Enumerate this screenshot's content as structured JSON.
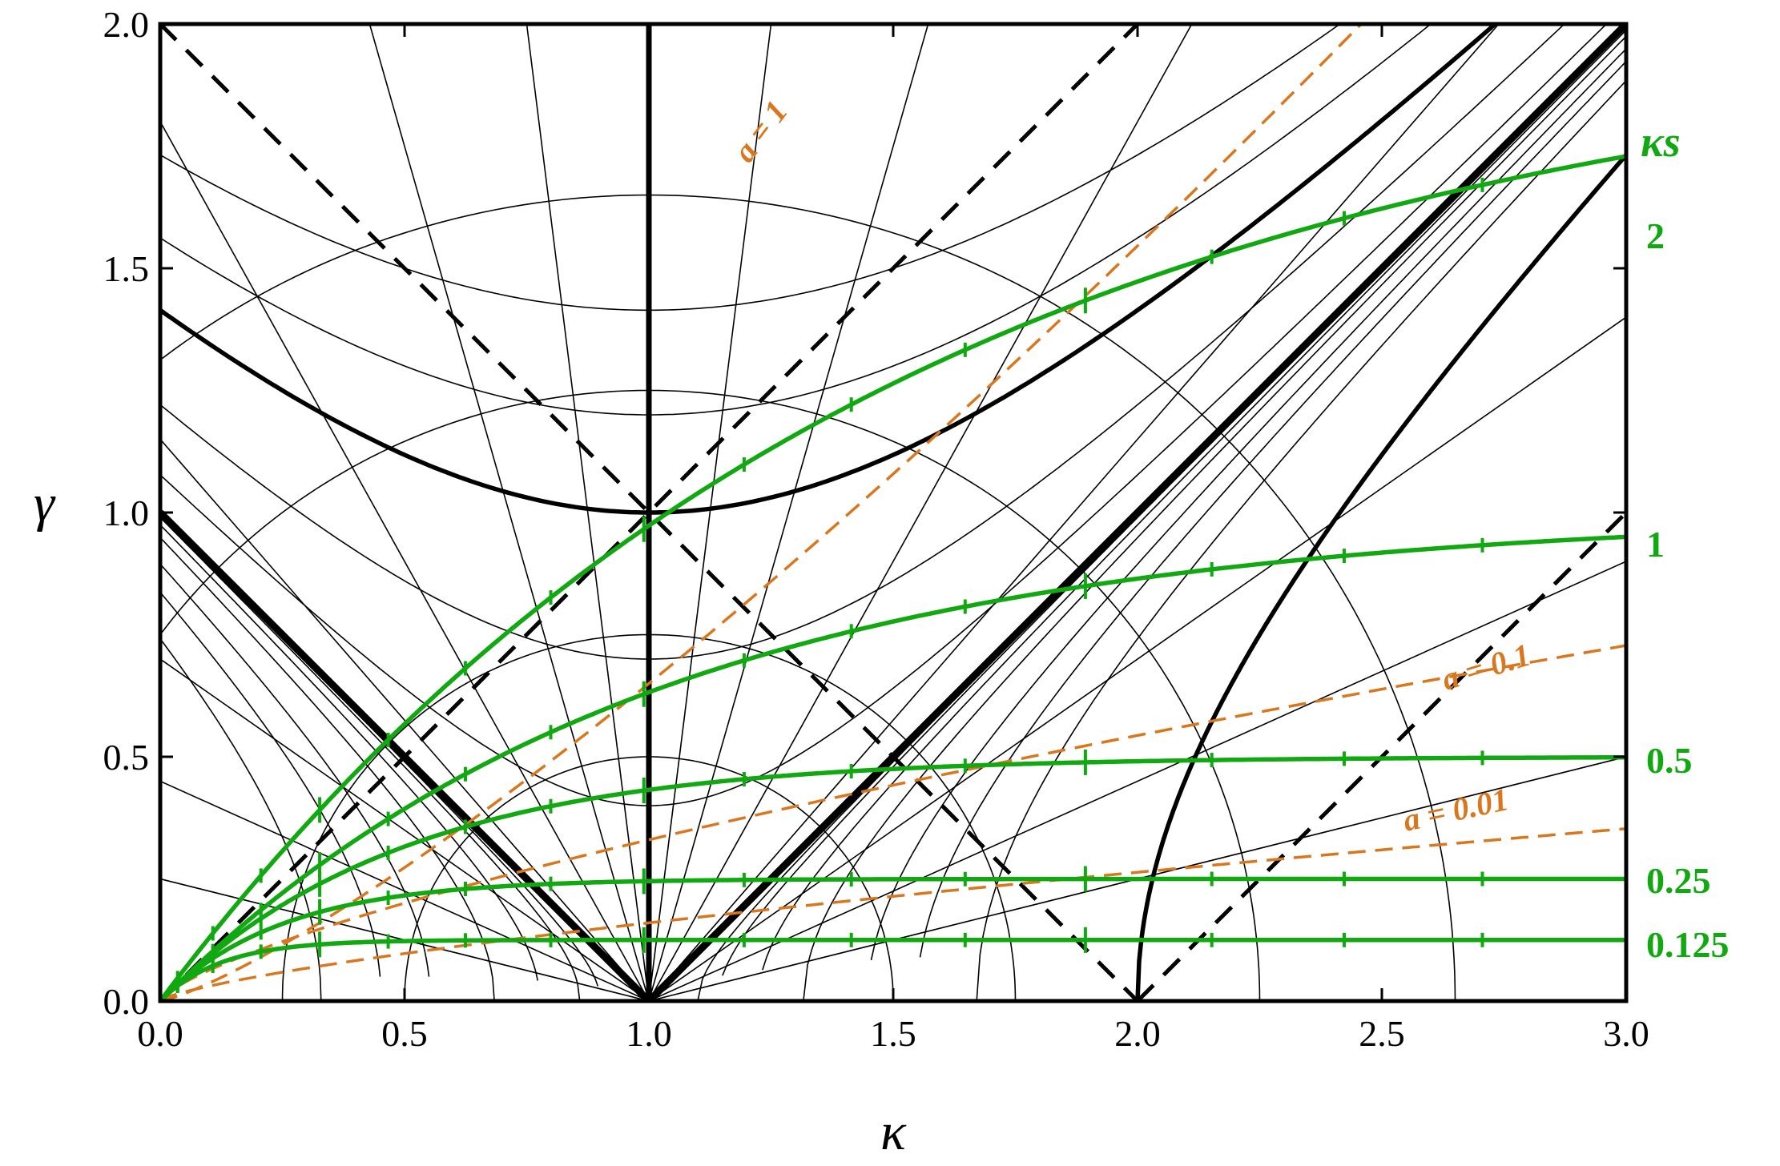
{
  "chart_data": {
    "type": "line",
    "title": "",
    "xlabel": "κ",
    "ylabel": "γ",
    "xlim": [
      0,
      3
    ],
    "ylim": [
      0,
      2
    ],
    "x_ticks": [
      "0.0",
      "0.5",
      "1.0",
      "1.5",
      "2.0",
      "2.5",
      "3.0"
    ],
    "y_ticks": [
      "0.0",
      "0.5",
      "1.0",
      "1.5",
      "2.0"
    ],
    "grid": false,
    "colors": {
      "black": "#000000",
      "green": "#11a811",
      "orange": "#d9771f"
    },
    "kappa_s": {
      "title": "κs",
      "values": [
        2,
        1,
        0.5,
        0.25,
        0.125
      ],
      "labels": [
        "2",
        "1",
        "0.5",
        "0.25",
        "0.125"
      ]
    },
    "a_curves": {
      "values": [
        1,
        0.1,
        0.01
      ],
      "labels": [
        "a = 1",
        "a = 0.1",
        "a = 0.01"
      ]
    },
    "background_families": {
      "b_values": [
        0.4,
        0.7,
        1,
        1.2,
        1.41421
      ],
      "c_values": [
        0.01,
        0.02,
        0.05,
        0.1,
        0.2,
        0.3,
        0.45
      ],
      "ray_slopes": [
        0.25,
        0.45,
        0.7,
        1.15,
        1.8,
        3.5,
        8
      ]
    },
    "feature_lines": {
      "bold_vertical_kappa": 1,
      "bold_hyperbola_b": 1,
      "bold_diagonals_through": [
        1,
        0
      ],
      "dashed_diagonals_through": [
        [
          1,
          1
        ],
        [
          2,
          0
        ]
      ]
    }
  }
}
